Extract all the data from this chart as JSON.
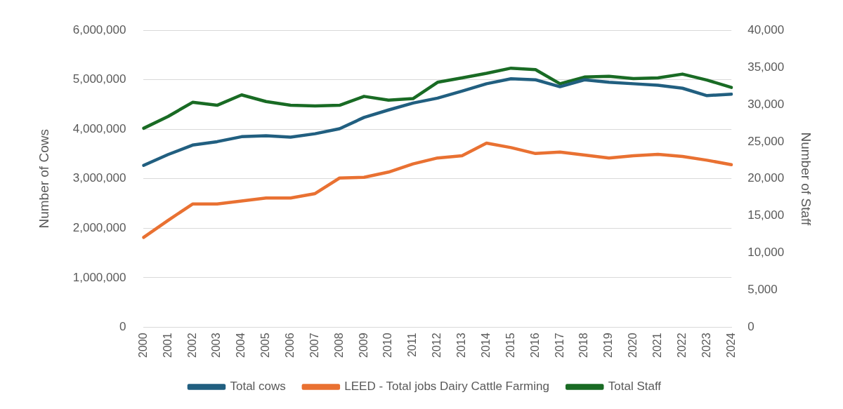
{
  "chart_data": {
    "type": "line",
    "ylabel": "Number of Cows",
    "y2label": "Number of Staff",
    "categories": [
      "2000",
      "2001",
      "2002",
      "2003",
      "2004",
      "2005",
      "2006",
      "2007",
      "2008",
      "2009",
      "2010",
      "2011",
      "2012",
      "2013",
      "2014",
      "2015",
      "2016",
      "2017",
      "2018",
      "2019",
      "2020",
      "2021",
      "2022",
      "2023",
      "2024"
    ],
    "series": [
      {
        "name": "Total cows",
        "color": "#215f80",
        "values": [
          3270000,
          3490000,
          3680000,
          3750000,
          3850000,
          3870000,
          3840000,
          3910000,
          4010000,
          4240000,
          4390000,
          4530000,
          4630000,
          4770000,
          4920000,
          5020000,
          5000000,
          4860000,
          5000000,
          4950000,
          4920000,
          4890000,
          4830000,
          4680000,
          4710000
        ]
      },
      {
        "name": "LEED - Total jobs Dairy Cattle Farming",
        "color": "#e97132",
        "axis": "y2",
        "values": [
          12100,
          14400,
          16600,
          16600,
          17000,
          17400,
          17400,
          18000,
          20100,
          20200,
          20900,
          22000,
          22800,
          23100,
          24800,
          24200,
          23400,
          23600,
          23200,
          22800,
          23100,
          23300,
          23000,
          22500,
          21900
        ]
      },
      {
        "name": "Total Staff",
        "color": "#196b24",
        "axis": "y2",
        "values": [
          26800,
          28400,
          30300,
          29900,
          31300,
          30400,
          29900,
          29800,
          29900,
          31100,
          30600,
          30800,
          33000,
          33600,
          34200,
          34900,
          34700,
          32800,
          33700,
          33800,
          33500,
          33600,
          34100,
          33300,
          32300
        ]
      }
    ],
    "ylim": [
      0,
      6000000
    ],
    "yticks": [
      {
        "value": 0,
        "label": "0"
      },
      {
        "value": 1000000,
        "label": "1,000,000"
      },
      {
        "value": 2000000,
        "label": "2,000,000"
      },
      {
        "value": 3000000,
        "label": "3,000,000"
      },
      {
        "value": 4000000,
        "label": "4,000,000"
      },
      {
        "value": 5000000,
        "label": "5,000,000"
      },
      {
        "value": 6000000,
        "label": "6,000,000"
      }
    ],
    "y2lim": [
      0,
      40000
    ],
    "y2ticks": [
      {
        "value": 0,
        "label": "0"
      },
      {
        "value": 5000,
        "label": "5,000"
      },
      {
        "value": 10000,
        "label": "10,000"
      },
      {
        "value": 15000,
        "label": "15,000"
      },
      {
        "value": 20000,
        "label": "20,000"
      },
      {
        "value": 25000,
        "label": "25,000"
      },
      {
        "value": 30000,
        "label": "30,000"
      },
      {
        "value": 35000,
        "label": "35,000"
      },
      {
        "value": 40000,
        "label": "40,000"
      }
    ],
    "grid": "y",
    "legend": "bottom",
    "marker": "none",
    "line_style": "solid"
  }
}
